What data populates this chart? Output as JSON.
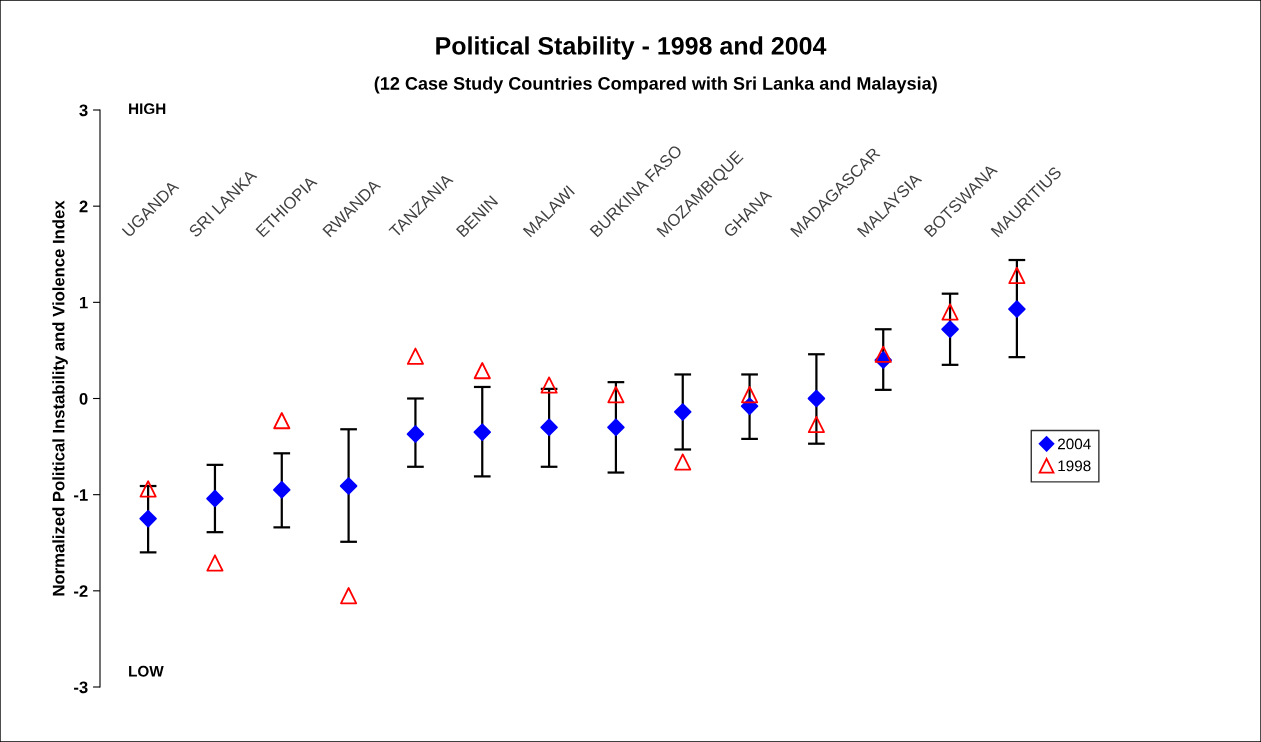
{
  "chart_data": {
    "type": "scatter",
    "title": "Political Stability - 1998 and 2004",
    "subtitle": "(12 Case Study Countries Compared with Sri Lanka and Malaysia)",
    "ylabel": "Normalized Political Instability and Violence Index",
    "annotations": [
      "HIGH",
      "LOW"
    ],
    "categories": [
      "UGANDA",
      "SRI LANKA",
      "ETHIOPIA",
      "RWANDA",
      "TANZANIA",
      "BENIN",
      "MALAWI",
      "BURKINA FASO",
      "MOZAMBIQUE",
      "GHANA",
      "MADAGASCAR",
      "MALAYSIA",
      "BOTSWANA",
      "MAURITIUS"
    ],
    "series": [
      {
        "name": "2004",
        "color": "#0000ff",
        "marker": "diamond",
        "values": [
          -1.25,
          -1.04,
          -0.95,
          -0.91,
          -0.37,
          -0.35,
          -0.3,
          -0.3,
          -0.14,
          -0.08,
          0.0,
          0.4,
          0.72,
          0.93
        ],
        "errors": [
          [
            -1.6,
            -0.91
          ],
          [
            -1.39,
            -0.69
          ],
          [
            -1.34,
            -0.57
          ],
          [
            -1.49,
            -0.32
          ],
          [
            -0.71,
            0.0
          ],
          [
            -0.81,
            0.12
          ],
          [
            -0.71,
            0.1
          ],
          [
            -0.77,
            0.17
          ],
          [
            -0.53,
            0.25
          ],
          [
            -0.42,
            0.25
          ],
          [
            -0.47,
            0.46
          ],
          [
            0.09,
            0.72
          ],
          [
            0.35,
            1.09
          ],
          [
            0.43,
            1.44
          ]
        ]
      },
      {
        "name": "1998",
        "color": "#ff0000",
        "marker": "triangle",
        "values": [
          -0.94,
          -1.71,
          -0.23,
          -2.05,
          0.44,
          0.29,
          0.14,
          0.04,
          -0.66,
          0.04,
          -0.27,
          0.46,
          0.9,
          1.28
        ]
      }
    ],
    "ylim": [
      -3,
      3
    ],
    "yticks": [
      -3,
      -2,
      -1,
      0,
      1,
      2,
      3
    ],
    "grid": false,
    "legend": "right",
    "tick_labels": "y"
  }
}
